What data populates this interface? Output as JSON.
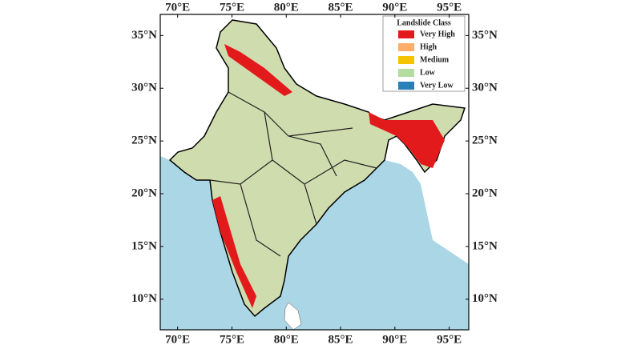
{
  "chart_data": {
    "type": "map",
    "xlim": [
      68.4,
      96.8
    ],
    "ylim": [
      7.1,
      37
    ],
    "xticks": [
      {
        "value": 70,
        "label": "70°E"
      },
      {
        "value": 75,
        "label": "75°E"
      },
      {
        "value": 80,
        "label": "80°E"
      },
      {
        "value": 85,
        "label": "85°E"
      },
      {
        "value": 90,
        "label": "90°E"
      },
      {
        "value": 95,
        "label": "95°E"
      }
    ],
    "yticks": [
      {
        "value": 35,
        "label": "35°N"
      },
      {
        "value": 30,
        "label": "30°N"
      },
      {
        "value": 25,
        "label": "25°N"
      },
      {
        "value": 20,
        "label": "20°N"
      },
      {
        "value": 15,
        "label": "15°N"
      },
      {
        "value": 10,
        "label": "10°N"
      }
    ],
    "legend": {
      "title": "Landslide Class",
      "corner": "upper right",
      "classes": [
        {
          "name": "Very High",
          "color": "#e31a1c"
        },
        {
          "name": "High",
          "color": "#fdae6b"
        },
        {
          "name": "Medium",
          "color": "#f5c400"
        },
        {
          "name": "Low",
          "color": "#b5dca0"
        },
        {
          "name": "Very Low",
          "color": "#2b7fb8"
        }
      ]
    }
  }
}
